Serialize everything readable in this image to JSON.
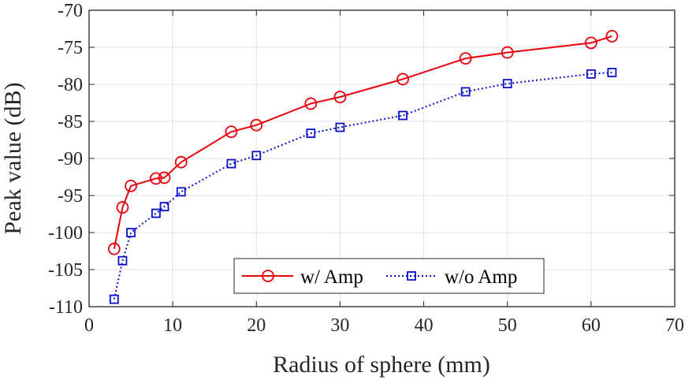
{
  "chart_data": {
    "type": "line",
    "title": "",
    "xlabel": "Radius of sphere (mm)",
    "ylabel": "Peak value (dB)",
    "xlim": [
      0,
      70
    ],
    "ylim": [
      -110,
      -70
    ],
    "xticks": [
      0,
      10,
      20,
      30,
      40,
      50,
      60,
      70
    ],
    "yticks": [
      -70,
      -75,
      -80,
      -85,
      -90,
      -95,
      -100,
      -105,
      -110
    ],
    "grid": true,
    "legend_position": "bottom-center",
    "series": [
      {
        "name": "w/ Amp",
        "color": "#e8000b",
        "line_style": "solid",
        "marker": "circle",
        "x": [
          3,
          4,
          5,
          8,
          9,
          11,
          17,
          20,
          26.5,
          30,
          37.5,
          45,
          50,
          60,
          62.5
        ],
        "y": [
          -102.2,
          -96.6,
          -93.7,
          -92.7,
          -92.6,
          -90.5,
          -86.4,
          -85.5,
          -82.6,
          -81.7,
          -79.3,
          -76.5,
          -75.7,
          -74.4,
          -73.5
        ]
      },
      {
        "name": "w/o Amp",
        "color": "#0a10c8",
        "line_style": "dotted",
        "marker": "square",
        "x": [
          3,
          4,
          5,
          8,
          9,
          11,
          17,
          20,
          26.5,
          30,
          37.5,
          45,
          50,
          60,
          62.5
        ],
        "y": [
          -109,
          -103.8,
          -100,
          -97.4,
          -96.5,
          -94.5,
          -90.7,
          -89.6,
          -86.6,
          -85.8,
          -84.2,
          -81,
          -79.9,
          -78.6,
          -78.4
        ]
      }
    ]
  }
}
